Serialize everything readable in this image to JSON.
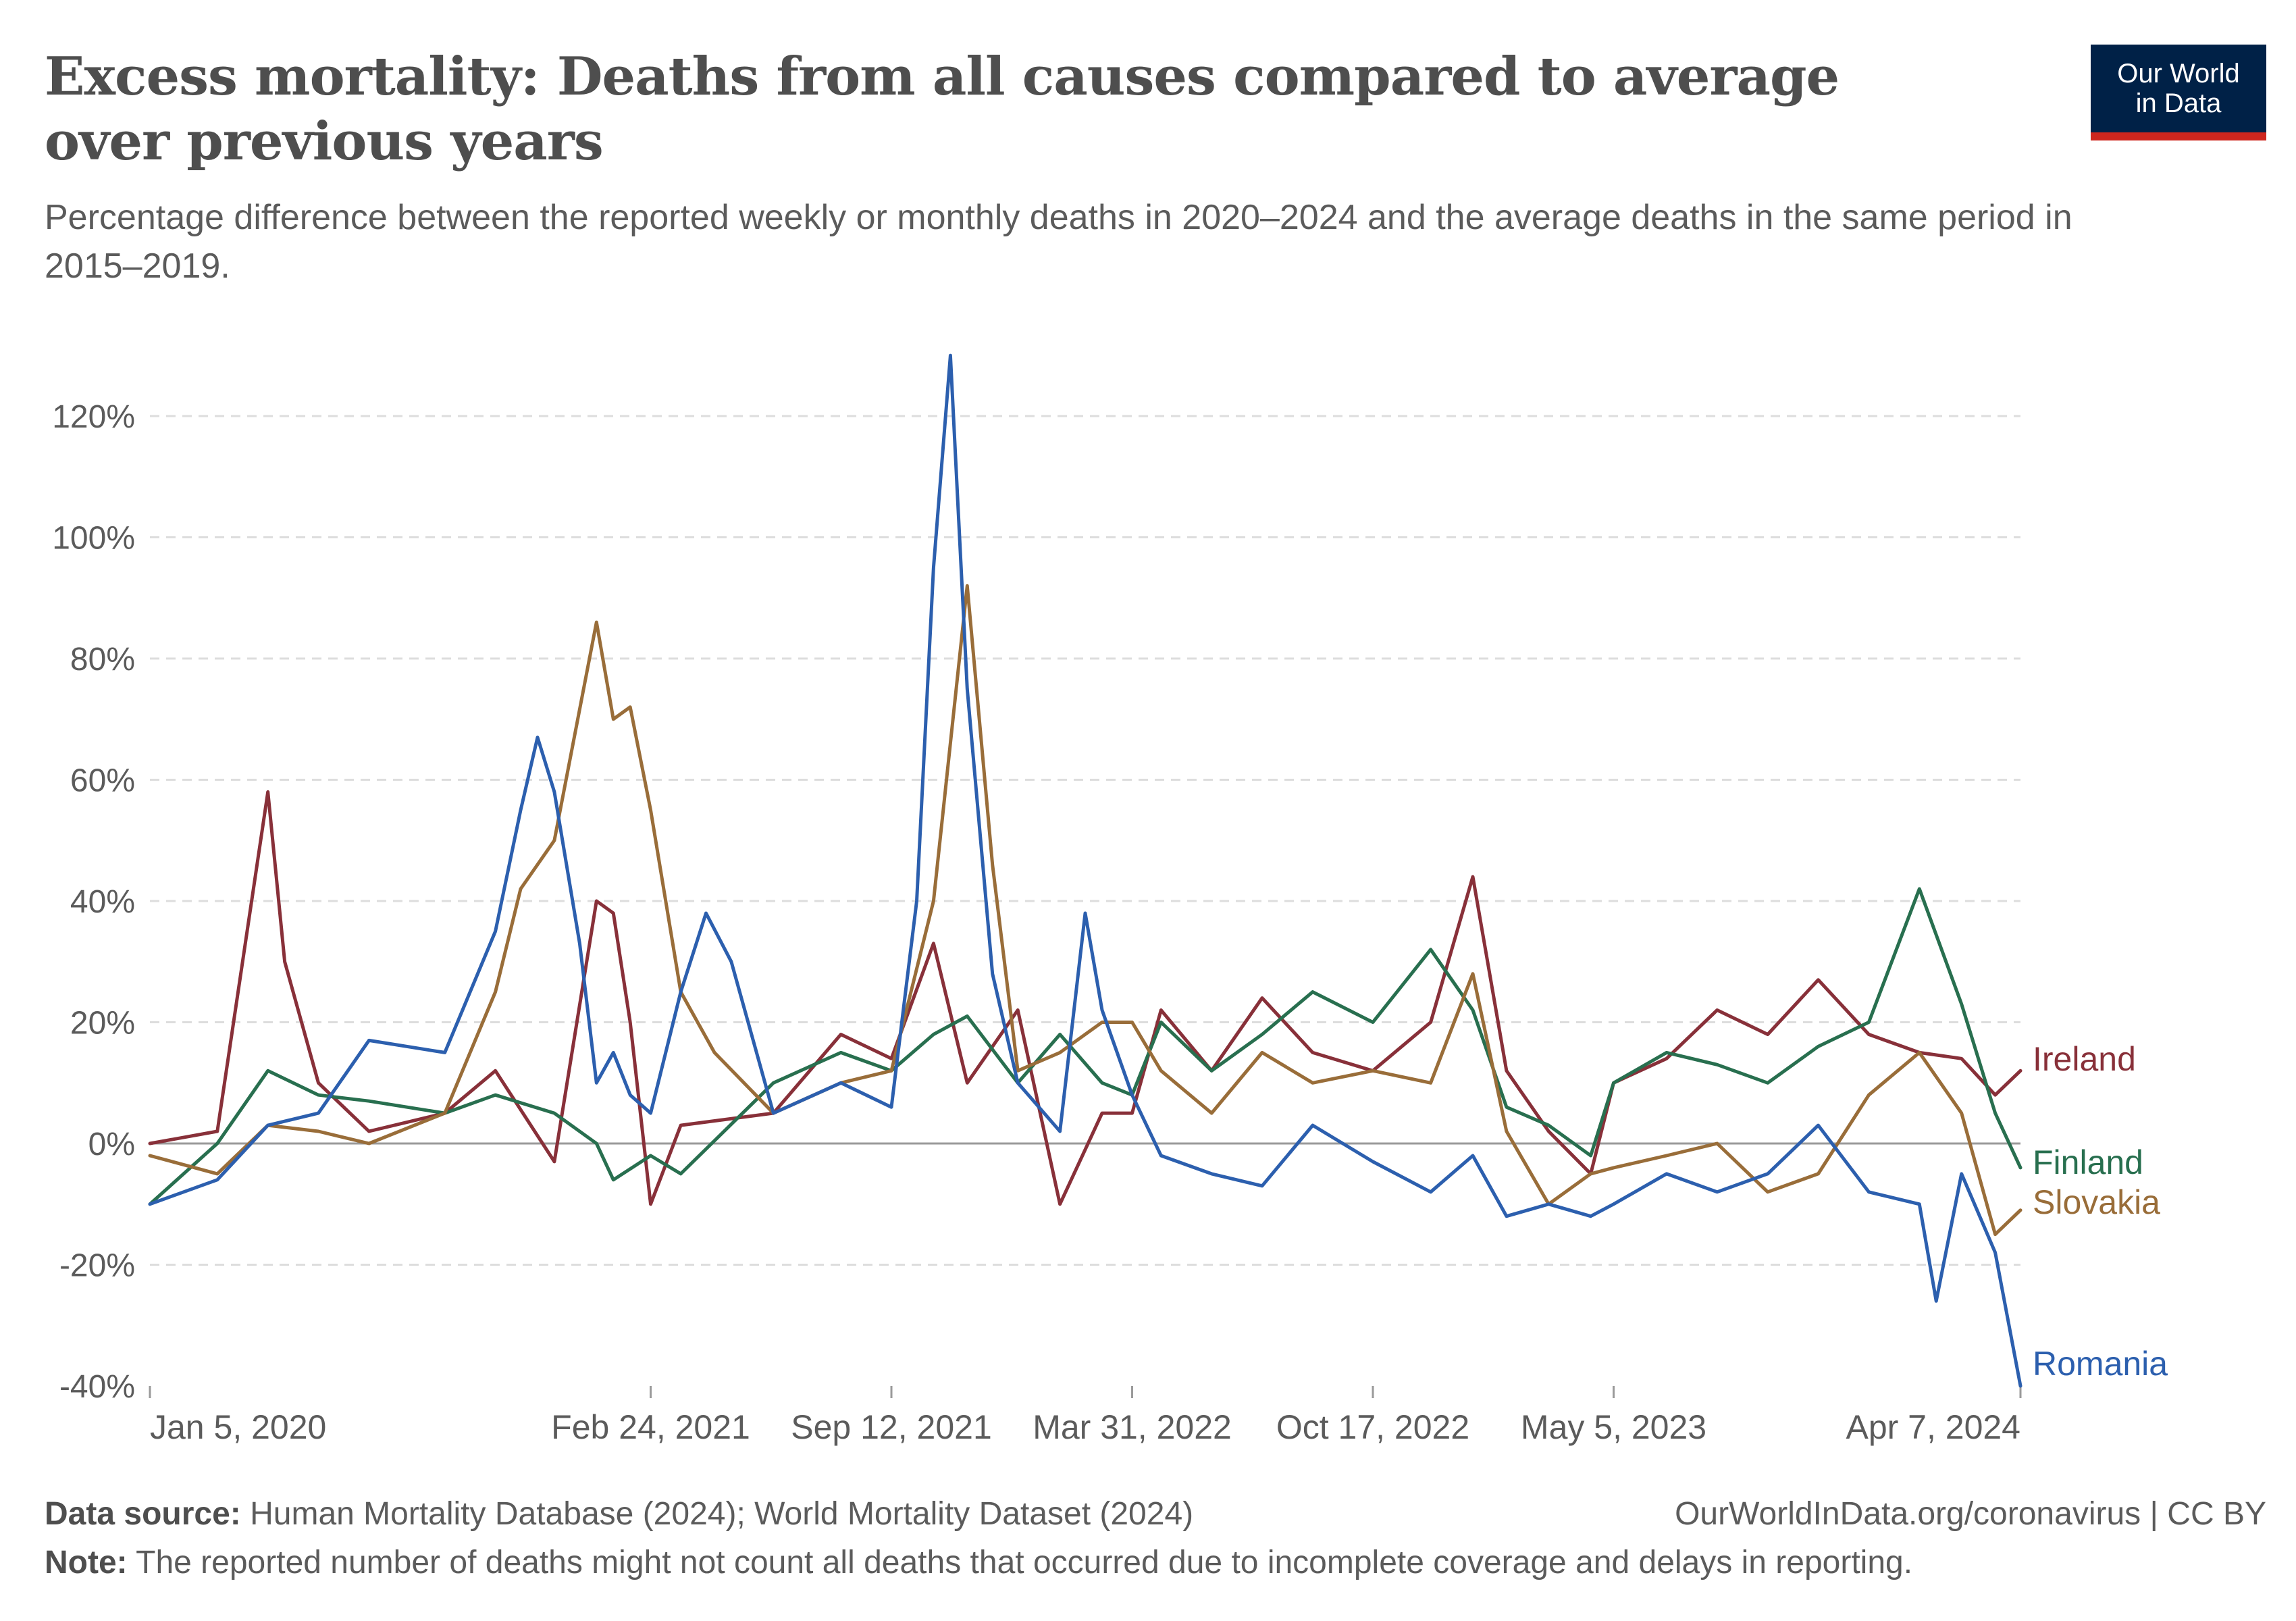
{
  "header": {
    "title": "Excess mortality: Deaths from all causes compared to average over previous years",
    "subtitle": "Percentage difference between the reported weekly or monthly deaths in 2020–2024 and the average deaths in the same period in 2015–2019.",
    "logo_line1": "Our World",
    "logo_line2": "in Data"
  },
  "footer": {
    "source_label": "Data source:",
    "source_text": "Human Mortality Database (2024); World Mortality Dataset (2024)",
    "link": "OurWorldInData.org/coronavirus | CC BY",
    "note_label": "Note:",
    "note_text": "The reported number of deaths might not count all deaths that occurred due to incomplete coverage and delays in reporting."
  },
  "chart_data": {
    "type": "line",
    "title": "Excess mortality: Deaths from all causes compared to average over previous years",
    "y_unit": "%",
    "ylim": [
      -40,
      130
    ],
    "yticks": [
      -40,
      -20,
      0,
      20,
      40,
      60,
      80,
      100,
      120
    ],
    "ytick_labels": [
      "-40%",
      "-20%",
      "0%",
      "20%",
      "40%",
      "60%",
      "80%",
      "100%",
      "120%"
    ],
    "xlim": [
      "2020-01-05",
      "2024-04-07"
    ],
    "xticks": [
      "2020-01-05",
      "2021-02-24",
      "2021-09-12",
      "2022-03-31",
      "2022-10-17",
      "2023-05-05",
      "2024-04-07"
    ],
    "xtick_labels": [
      "Jan 5, 2020",
      "Feb 24, 2021",
      "Sep 12, 2021",
      "Mar 31, 2022",
      "Oct 17, 2022",
      "May 5, 2023",
      "Apr 7, 2024"
    ],
    "grid": "horizontal dashed",
    "legend": "line-end labels on the right",
    "series": [
      {
        "name": "Ireland",
        "color": "#883039",
        "points": [
          [
            "2020-01-05",
            0
          ],
          [
            "2020-03-01",
            2
          ],
          [
            "2020-04-12",
            58
          ],
          [
            "2020-04-26",
            30
          ],
          [
            "2020-05-24",
            10
          ],
          [
            "2020-07-05",
            2
          ],
          [
            "2020-09-06",
            5
          ],
          [
            "2020-10-18",
            12
          ],
          [
            "2020-12-06",
            -3
          ],
          [
            "2021-01-10",
            40
          ],
          [
            "2021-01-24",
            38
          ],
          [
            "2021-02-07",
            20
          ],
          [
            "2021-02-24",
            -10
          ],
          [
            "2021-03-21",
            3
          ],
          [
            "2021-06-06",
            5
          ],
          [
            "2021-08-01",
            18
          ],
          [
            "2021-09-12",
            14
          ],
          [
            "2021-10-17",
            33
          ],
          [
            "2021-11-14",
            10
          ],
          [
            "2021-12-26",
            22
          ],
          [
            "2022-01-30",
            -10
          ],
          [
            "2022-03-06",
            5
          ],
          [
            "2022-03-31",
            5
          ],
          [
            "2022-04-24",
            22
          ],
          [
            "2022-06-05",
            12
          ],
          [
            "2022-07-17",
            24
          ],
          [
            "2022-08-28",
            15
          ],
          [
            "2022-10-17",
            12
          ],
          [
            "2022-12-04",
            20
          ],
          [
            "2023-01-08",
            44
          ],
          [
            "2023-02-05",
            12
          ],
          [
            "2023-03-12",
            2
          ],
          [
            "2023-04-16",
            -5
          ],
          [
            "2023-05-05",
            10
          ],
          [
            "2023-06-18",
            14
          ],
          [
            "2023-07-30",
            22
          ],
          [
            "2023-09-10",
            18
          ],
          [
            "2023-10-22",
            27
          ],
          [
            "2023-12-03",
            18
          ],
          [
            "2024-01-14",
            15
          ],
          [
            "2024-02-18",
            14
          ],
          [
            "2024-03-17",
            8
          ],
          [
            "2024-04-07",
            12
          ]
        ]
      },
      {
        "name": "Finland",
        "color": "#286f4f",
        "points": [
          [
            "2020-01-05",
            -10
          ],
          [
            "2020-03-01",
            0
          ],
          [
            "2020-04-12",
            12
          ],
          [
            "2020-05-24",
            8
          ],
          [
            "2020-07-05",
            7
          ],
          [
            "2020-09-06",
            5
          ],
          [
            "2020-10-18",
            8
          ],
          [
            "2020-12-06",
            5
          ],
          [
            "2021-01-10",
            0
          ],
          [
            "2021-01-24",
            -6
          ],
          [
            "2021-02-24",
            -2
          ],
          [
            "2021-03-21",
            -5
          ],
          [
            "2021-06-06",
            10
          ],
          [
            "2021-08-01",
            15
          ],
          [
            "2021-09-12",
            12
          ],
          [
            "2021-10-17",
            18
          ],
          [
            "2021-11-14",
            21
          ],
          [
            "2021-12-26",
            10
          ],
          [
            "2022-01-30",
            18
          ],
          [
            "2022-03-06",
            10
          ],
          [
            "2022-03-31",
            8
          ],
          [
            "2022-04-24",
            20
          ],
          [
            "2022-06-05",
            12
          ],
          [
            "2022-07-17",
            18
          ],
          [
            "2022-08-28",
            25
          ],
          [
            "2022-10-17",
            20
          ],
          [
            "2022-12-04",
            32
          ],
          [
            "2023-01-08",
            22
          ],
          [
            "2023-02-05",
            6
          ],
          [
            "2023-03-12",
            3
          ],
          [
            "2023-04-16",
            -2
          ],
          [
            "2023-05-05",
            10
          ],
          [
            "2023-06-18",
            15
          ],
          [
            "2023-07-30",
            13
          ],
          [
            "2023-09-10",
            10
          ],
          [
            "2023-10-22",
            16
          ],
          [
            "2023-12-03",
            20
          ],
          [
            "2024-01-14",
            42
          ],
          [
            "2024-02-18",
            23
          ],
          [
            "2024-03-17",
            5
          ],
          [
            "2024-04-07",
            -4
          ]
        ]
      },
      {
        "name": "Slovakia",
        "color": "#996d39",
        "points": [
          [
            "2020-01-05",
            -2
          ],
          [
            "2020-03-01",
            -5
          ],
          [
            "2020-04-12",
            3
          ],
          [
            "2020-05-24",
            2
          ],
          [
            "2020-07-05",
            0
          ],
          [
            "2020-09-06",
            5
          ],
          [
            "2020-10-18",
            25
          ],
          [
            "2020-11-08",
            42
          ],
          [
            "2020-12-06",
            50
          ],
          [
            "2021-01-10",
            86
          ],
          [
            "2021-01-24",
            70
          ],
          [
            "2021-02-07",
            72
          ],
          [
            "2021-02-24",
            55
          ],
          [
            "2021-03-21",
            25
          ],
          [
            "2021-04-18",
            15
          ],
          [
            "2021-06-06",
            5
          ],
          [
            "2021-08-01",
            10
          ],
          [
            "2021-09-12",
            12
          ],
          [
            "2021-10-17",
            40
          ],
          [
            "2021-11-14",
            92
          ],
          [
            "2021-12-05",
            46
          ],
          [
            "2021-12-26",
            12
          ],
          [
            "2022-01-30",
            15
          ],
          [
            "2022-03-06",
            20
          ],
          [
            "2022-03-31",
            20
          ],
          [
            "2022-04-24",
            12
          ],
          [
            "2022-06-05",
            5
          ],
          [
            "2022-07-17",
            15
          ],
          [
            "2022-08-28",
            10
          ],
          [
            "2022-10-17",
            12
          ],
          [
            "2022-12-04",
            10
          ],
          [
            "2023-01-08",
            28
          ],
          [
            "2023-02-05",
            2
          ],
          [
            "2023-03-12",
            -10
          ],
          [
            "2023-04-16",
            -5
          ],
          [
            "2023-05-05",
            -4
          ],
          [
            "2023-06-18",
            -2
          ],
          [
            "2023-07-30",
            0
          ],
          [
            "2023-09-10",
            -8
          ],
          [
            "2023-10-22",
            -5
          ],
          [
            "2023-12-03",
            8
          ],
          [
            "2024-01-14",
            15
          ],
          [
            "2024-02-18",
            5
          ],
          [
            "2024-03-17",
            -15
          ],
          [
            "2024-04-07",
            -11
          ]
        ]
      },
      {
        "name": "Romania",
        "color": "#2c5fae",
        "points": [
          [
            "2020-01-05",
            -10
          ],
          [
            "2020-03-01",
            -6
          ],
          [
            "2020-04-12",
            3
          ],
          [
            "2020-05-24",
            5
          ],
          [
            "2020-07-05",
            17
          ],
          [
            "2020-09-06",
            15
          ],
          [
            "2020-10-18",
            35
          ],
          [
            "2020-11-08",
            55
          ],
          [
            "2020-11-22",
            67
          ],
          [
            "2020-12-06",
            58
          ],
          [
            "2020-12-27",
            33
          ],
          [
            "2021-01-10",
            10
          ],
          [
            "2021-01-24",
            15
          ],
          [
            "2021-02-07",
            8
          ],
          [
            "2021-02-24",
            5
          ],
          [
            "2021-03-21",
            25
          ],
          [
            "2021-04-11",
            38
          ],
          [
            "2021-05-02",
            30
          ],
          [
            "2021-06-06",
            5
          ],
          [
            "2021-08-01",
            10
          ],
          [
            "2021-09-12",
            6
          ],
          [
            "2021-10-03",
            40
          ],
          [
            "2021-10-17",
            95
          ],
          [
            "2021-10-31",
            130
          ],
          [
            "2021-11-14",
            75
          ],
          [
            "2021-12-05",
            28
          ],
          [
            "2021-12-26",
            10
          ],
          [
            "2022-01-30",
            2
          ],
          [
            "2022-02-20",
            38
          ],
          [
            "2022-03-06",
            22
          ],
          [
            "2022-03-31",
            8
          ],
          [
            "2022-04-24",
            -2
          ],
          [
            "2022-06-05",
            -5
          ],
          [
            "2022-07-17",
            -7
          ],
          [
            "2022-08-28",
            3
          ],
          [
            "2022-10-17",
            -3
          ],
          [
            "2022-12-04",
            -8
          ],
          [
            "2023-01-08",
            -2
          ],
          [
            "2023-02-05",
            -12
          ],
          [
            "2023-03-12",
            -10
          ],
          [
            "2023-04-16",
            -12
          ],
          [
            "2023-05-05",
            -10
          ],
          [
            "2023-06-18",
            -5
          ],
          [
            "2023-07-30",
            -8
          ],
          [
            "2023-09-10",
            -5
          ],
          [
            "2023-10-22",
            3
          ],
          [
            "2023-12-03",
            -8
          ],
          [
            "2024-01-14",
            -10
          ],
          [
            "2024-01-28",
            -26
          ],
          [
            "2024-02-18",
            -5
          ],
          [
            "2024-03-17",
            -18
          ],
          [
            "2024-04-07",
            -40
          ]
        ]
      }
    ]
  }
}
